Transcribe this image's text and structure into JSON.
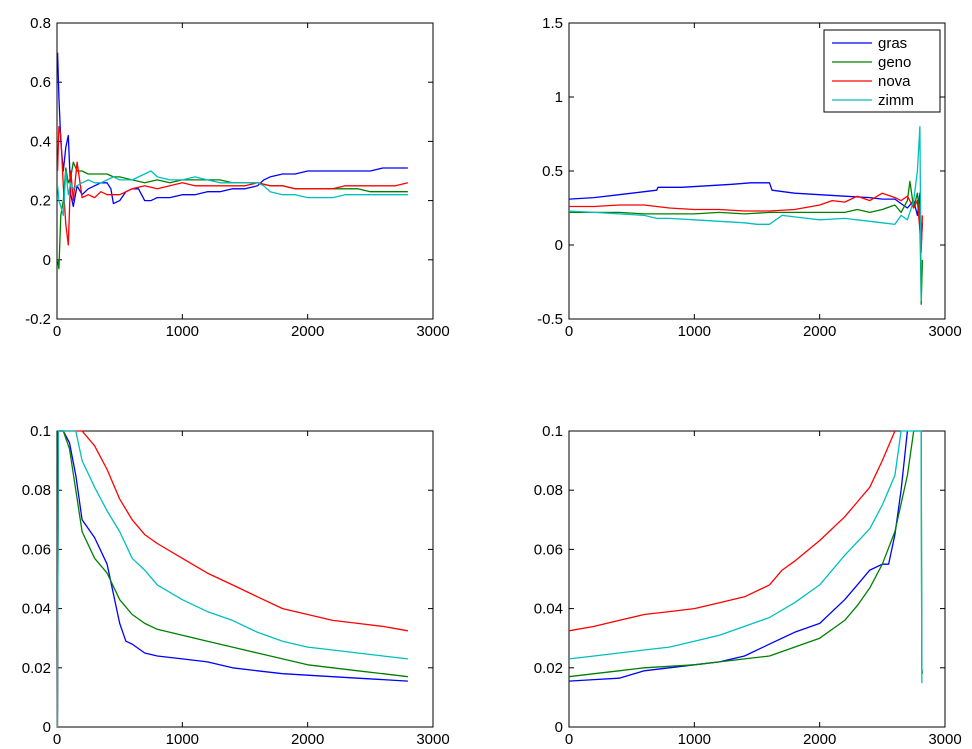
{
  "chart_data": [
    {
      "type": "line",
      "title": "",
      "xlabel": "",
      "ylabel": "",
      "xlim": [
        0,
        3000
      ],
      "ylim": [
        -0.2,
        0.8
      ],
      "xticks": [
        0,
        1000,
        2000,
        3000
      ],
      "yticks": [
        -0.2,
        0,
        0.2,
        0.4,
        0.6,
        0.8
      ],
      "xtick_labels": [
        "0",
        "1000",
        "2000",
        "3000"
      ],
      "ytick_labels": [
        "-0.2",
        "0",
        "0.2",
        "0.4",
        "0.6",
        "0.8"
      ],
      "grid": false,
      "legend": null,
      "series": [
        {
          "color": "#0000ff",
          "x": [
            5,
            15,
            30,
            50,
            70,
            90,
            110,
            130,
            160,
            200,
            250,
            300,
            350,
            400,
            430,
            450,
            500,
            550,
            600,
            650,
            700,
            750,
            800,
            900,
            1000,
            1100,
            1200,
            1300,
            1400,
            1500,
            1600,
            1650,
            1700,
            1800,
            1900,
            2000,
            2100,
            2200,
            2300,
            2400,
            2500,
            2600,
            2700,
            2800
          ],
          "y": [
            0.7,
            0.55,
            0.4,
            0.3,
            0.38,
            0.42,
            0.22,
            0.18,
            0.25,
            0.22,
            0.24,
            0.25,
            0.26,
            0.26,
            0.24,
            0.19,
            0.2,
            0.23,
            0.24,
            0.24,
            0.2,
            0.2,
            0.21,
            0.21,
            0.22,
            0.22,
            0.23,
            0.23,
            0.24,
            0.24,
            0.25,
            0.27,
            0.28,
            0.29,
            0.29,
            0.3,
            0.3,
            0.3,
            0.3,
            0.3,
            0.3,
            0.31,
            0.31,
            0.31
          ]
        },
        {
          "color": "#008000",
          "x": [
            5,
            15,
            30,
            50,
            70,
            90,
            110,
            130,
            160,
            200,
            250,
            300,
            350,
            400,
            450,
            500,
            600,
            700,
            800,
            900,
            1000,
            1100,
            1200,
            1300,
            1400,
            1500,
            1600,
            1700,
            1800,
            1900,
            2000,
            2100,
            2200,
            2300,
            2400,
            2500,
            2600,
            2700,
            2800
          ],
          "y": [
            0.0,
            -0.03,
            0.15,
            0.2,
            0.31,
            0.26,
            0.28,
            0.33,
            0.3,
            0.3,
            0.29,
            0.29,
            0.29,
            0.29,
            0.28,
            0.28,
            0.27,
            0.26,
            0.27,
            0.26,
            0.27,
            0.27,
            0.27,
            0.27,
            0.26,
            0.26,
            0.26,
            0.25,
            0.25,
            0.24,
            0.24,
            0.24,
            0.24,
            0.24,
            0.24,
            0.23,
            0.23,
            0.23,
            0.23
          ]
        },
        {
          "color": "#ff0000",
          "x": [
            5,
            15,
            30,
            50,
            70,
            90,
            110,
            130,
            160,
            200,
            250,
            300,
            350,
            400,
            500,
            600,
            700,
            800,
            900,
            1000,
            1100,
            1200,
            1300,
            1400,
            1500,
            1600,
            1700,
            1800,
            1900,
            2000,
            2100,
            2200,
            2300,
            2400,
            2500,
            2600,
            2700,
            2800
          ],
          "y": [
            0.3,
            0.45,
            0.42,
            0.25,
            0.12,
            0.05,
            0.3,
            0.2,
            0.33,
            0.21,
            0.22,
            0.21,
            0.23,
            0.22,
            0.22,
            0.24,
            0.25,
            0.24,
            0.25,
            0.26,
            0.25,
            0.25,
            0.25,
            0.25,
            0.25,
            0.26,
            0.25,
            0.25,
            0.24,
            0.24,
            0.24,
            0.24,
            0.25,
            0.25,
            0.25,
            0.25,
            0.25,
            0.26
          ]
        },
        {
          "color": "#00bfbf",
          "x": [
            5,
            15,
            30,
            50,
            70,
            90,
            110,
            130,
            160,
            200,
            250,
            300,
            350,
            400,
            450,
            500,
            600,
            700,
            750,
            800,
            900,
            1000,
            1100,
            1200,
            1300,
            1400,
            1500,
            1600,
            1650,
            1700,
            1800,
            1900,
            2000,
            2100,
            2200,
            2300,
            2400,
            2500,
            2600,
            2700,
            2800
          ],
          "y": [
            0.25,
            0.2,
            0.18,
            0.15,
            0.3,
            0.22,
            0.26,
            0.24,
            0.25,
            0.26,
            0.27,
            0.26,
            0.26,
            0.27,
            0.28,
            0.27,
            0.27,
            0.29,
            0.3,
            0.28,
            0.27,
            0.27,
            0.28,
            0.27,
            0.26,
            0.26,
            0.26,
            0.26,
            0.25,
            0.23,
            0.22,
            0.22,
            0.21,
            0.21,
            0.21,
            0.22,
            0.22,
            0.22,
            0.22,
            0.22,
            0.22
          ]
        }
      ]
    },
    {
      "type": "line",
      "title": "",
      "xlabel": "",
      "ylabel": "",
      "xlim": [
        0,
        3000
      ],
      "ylim": [
        -0.5,
        1.5
      ],
      "xticks": [
        0,
        1000,
        2000,
        3000
      ],
      "yticks": [
        -0.5,
        0,
        0.5,
        1,
        1.5
      ],
      "xtick_labels": [
        "0",
        "1000",
        "2000",
        "3000"
      ],
      "ytick_labels": [
        "-0.5",
        "0",
        "0.5",
        "1",
        "1.5"
      ],
      "grid": false,
      "legend": {
        "placement": "top-right",
        "entries": [
          "gras",
          "geno",
          "nova",
          "zimm"
        ]
      },
      "series": [
        {
          "name": "gras",
          "color": "#0000ff",
          "x": [
            0,
            200,
            400,
            600,
            700,
            710,
            900,
            1100,
            1300,
            1450,
            1500,
            1600,
            1620,
            1800,
            2000,
            2200,
            2400,
            2500,
            2600,
            2650,
            2700,
            2750,
            2780,
            2800,
            2810,
            2820
          ],
          "y": [
            0.31,
            0.32,
            0.34,
            0.36,
            0.37,
            0.39,
            0.39,
            0.4,
            0.41,
            0.42,
            0.42,
            0.42,
            0.37,
            0.35,
            0.34,
            0.33,
            0.32,
            0.31,
            0.31,
            0.28,
            0.25,
            0.3,
            0.2,
            0.35,
            0.0,
            0.15
          ]
        },
        {
          "name": "geno",
          "color": "#008000",
          "x": [
            0,
            200,
            400,
            600,
            800,
            1000,
            1200,
            1400,
            1600,
            1800,
            2000,
            2200,
            2300,
            2400,
            2500,
            2600,
            2650,
            2700,
            2720,
            2750,
            2780,
            2800,
            2810,
            2820
          ],
          "y": [
            0.22,
            0.22,
            0.22,
            0.21,
            0.21,
            0.21,
            0.22,
            0.21,
            0.22,
            0.22,
            0.22,
            0.22,
            0.24,
            0.22,
            0.24,
            0.27,
            0.22,
            0.3,
            0.43,
            0.25,
            0.35,
            0.2,
            -0.4,
            -0.1
          ]
        },
        {
          "name": "nova",
          "color": "#ff0000",
          "x": [
            0,
            200,
            400,
            600,
            800,
            1000,
            1200,
            1400,
            1600,
            1800,
            2000,
            2100,
            2200,
            2300,
            2400,
            2500,
            2600,
            2650,
            2700,
            2750,
            2780,
            2800,
            2810,
            2820
          ],
          "y": [
            0.26,
            0.26,
            0.27,
            0.27,
            0.25,
            0.24,
            0.24,
            0.23,
            0.23,
            0.24,
            0.27,
            0.3,
            0.29,
            0.33,
            0.3,
            0.35,
            0.32,
            0.3,
            0.33,
            0.25,
            0.3,
            0.1,
            -0.05,
            0.2
          ]
        },
        {
          "name": "zimm",
          "color": "#00bfbf",
          "x": [
            0,
            200,
            400,
            600,
            700,
            800,
            1000,
            1200,
            1400,
            1500,
            1600,
            1700,
            1800,
            2000,
            2200,
            2400,
            2500,
            2600,
            2650,
            2700,
            2750,
            2780,
            2800,
            2810
          ],
          "y": [
            0.23,
            0.22,
            0.21,
            0.2,
            0.18,
            0.18,
            0.17,
            0.16,
            0.15,
            0.14,
            0.14,
            0.2,
            0.19,
            0.17,
            0.18,
            0.16,
            0.15,
            0.14,
            0.2,
            0.17,
            0.3,
            0.5,
            0.8,
            -0.38
          ]
        }
      ]
    },
    {
      "type": "line",
      "title": "",
      "xlabel": "",
      "ylabel": "",
      "xlim": [
        0,
        3000
      ],
      "ylim": [
        0,
        0.1
      ],
      "xticks": [
        0,
        1000,
        2000,
        3000
      ],
      "yticks": [
        0,
        0.02,
        0.04,
        0.06,
        0.08,
        0.1
      ],
      "xtick_labels": [
        "0",
        "1000",
        "2000",
        "3000"
      ],
      "ytick_labels": [
        "0",
        "0.02",
        "0.04",
        "0.06",
        "0.08",
        "0.1"
      ],
      "grid": false,
      "legend": null,
      "series": [
        {
          "color": "#0000ff",
          "x": [
            3,
            10,
            50,
            100,
            150,
            200,
            300,
            400,
            500,
            550,
            600,
            700,
            800,
            1000,
            1200,
            1400,
            1600,
            1800,
            2000,
            2200,
            2400,
            2600,
            2800
          ],
          "y": [
            0.0,
            0.1,
            0.1,
            0.096,
            0.085,
            0.07,
            0.064,
            0.055,
            0.035,
            0.029,
            0.028,
            0.025,
            0.024,
            0.023,
            0.022,
            0.02,
            0.019,
            0.018,
            0.0175,
            0.017,
            0.0165,
            0.016,
            0.0155
          ]
        },
        {
          "color": "#008000",
          "x": [
            3,
            10,
            50,
            100,
            150,
            200,
            300,
            400,
            500,
            600,
            700,
            800,
            1000,
            1200,
            1400,
            1600,
            1800,
            2000,
            2200,
            2400,
            2600,
            2800
          ],
          "y": [
            0.0,
            0.1,
            0.1,
            0.094,
            0.08,
            0.066,
            0.057,
            0.052,
            0.043,
            0.038,
            0.035,
            0.033,
            0.031,
            0.029,
            0.027,
            0.025,
            0.023,
            0.021,
            0.02,
            0.019,
            0.018,
            0.017
          ]
        },
        {
          "color": "#ff0000",
          "x": [
            3,
            10,
            50,
            150,
            200,
            300,
            400,
            500,
            600,
            700,
            800,
            1000,
            1200,
            1400,
            1600,
            1800,
            2000,
            2200,
            2400,
            2600,
            2800
          ],
          "y": [
            0.0,
            0.1,
            0.1,
            0.1,
            0.1,
            0.095,
            0.087,
            0.077,
            0.07,
            0.065,
            0.062,
            0.057,
            0.052,
            0.048,
            0.044,
            0.04,
            0.038,
            0.036,
            0.035,
            0.034,
            0.0325
          ]
        },
        {
          "color": "#00bfbf",
          "x": [
            3,
            10,
            50,
            100,
            150,
            200,
            300,
            400,
            500,
            600,
            700,
            800,
            1000,
            1200,
            1400,
            1600,
            1800,
            2000,
            2200,
            2400,
            2600,
            2800
          ],
          "y": [
            0.0,
            0.1,
            0.1,
            0.1,
            0.1,
            0.09,
            0.081,
            0.073,
            0.066,
            0.057,
            0.053,
            0.048,
            0.043,
            0.039,
            0.036,
            0.032,
            0.029,
            0.027,
            0.026,
            0.025,
            0.024,
            0.023
          ]
        }
      ]
    },
    {
      "type": "line",
      "title": "",
      "xlabel": "",
      "ylabel": "",
      "xlim": [
        0,
        3000
      ],
      "ylim": [
        0,
        0.1
      ],
      "xticks": [
        0,
        1000,
        2000,
        3000
      ],
      "yticks": [
        0,
        0.02,
        0.04,
        0.06,
        0.08,
        0.1
      ],
      "xtick_labels": [
        "0",
        "1000",
        "2000",
        "3000"
      ],
      "ytick_labels": [
        "0",
        "0.02",
        "0.04",
        "0.06",
        "0.08",
        "0.1"
      ],
      "grid": false,
      "legend": null,
      "series": [
        {
          "color": "#0000ff",
          "x": [
            0,
            200,
            400,
            600,
            800,
            1000,
            1200,
            1400,
            1600,
            1800,
            2000,
            2200,
            2300,
            2400,
            2500,
            2550,
            2600,
            2650,
            2700
          ],
          "y": [
            0.0155,
            0.016,
            0.0165,
            0.019,
            0.02,
            0.021,
            0.022,
            0.024,
            0.028,
            0.032,
            0.035,
            0.043,
            0.048,
            0.053,
            0.055,
            0.055,
            0.065,
            0.08,
            0.1
          ]
        },
        {
          "color": "#008000",
          "x": [
            0,
            200,
            400,
            600,
            800,
            1000,
            1200,
            1400,
            1600,
            1800,
            2000,
            2200,
            2300,
            2400,
            2500,
            2600,
            2700,
            2750,
            2800,
            2810,
            2815,
            2820
          ],
          "y": [
            0.017,
            0.018,
            0.019,
            0.02,
            0.0205,
            0.021,
            0.022,
            0.023,
            0.024,
            0.027,
            0.03,
            0.036,
            0.041,
            0.047,
            0.055,
            0.066,
            0.085,
            0.1,
            0.1,
            0.1,
            0.02,
            0.018
          ]
        },
        {
          "color": "#ff0000",
          "x": [
            0,
            200,
            400,
            600,
            800,
            1000,
            1200,
            1400,
            1600,
            1700,
            1800,
            2000,
            2200,
            2300,
            2400,
            2500,
            2600
          ],
          "y": [
            0.0325,
            0.034,
            0.036,
            0.038,
            0.039,
            0.04,
            0.042,
            0.044,
            0.048,
            0.053,
            0.056,
            0.063,
            0.071,
            0.076,
            0.081,
            0.09,
            0.1
          ]
        },
        {
          "color": "#00bfbf",
          "x": [
            0,
            200,
            400,
            600,
            800,
            1000,
            1200,
            1400,
            1600,
            1800,
            2000,
            2200,
            2400,
            2500,
            2600,
            2650,
            2700,
            2750,
            2800,
            2810,
            2815,
            2820
          ],
          "y": [
            0.023,
            0.024,
            0.025,
            0.026,
            0.027,
            0.029,
            0.031,
            0.034,
            0.037,
            0.042,
            0.048,
            0.058,
            0.067,
            0.075,
            0.085,
            0.1,
            0.1,
            0.1,
            0.1,
            0.1,
            0.015,
            0.015
          ]
        }
      ]
    }
  ]
}
